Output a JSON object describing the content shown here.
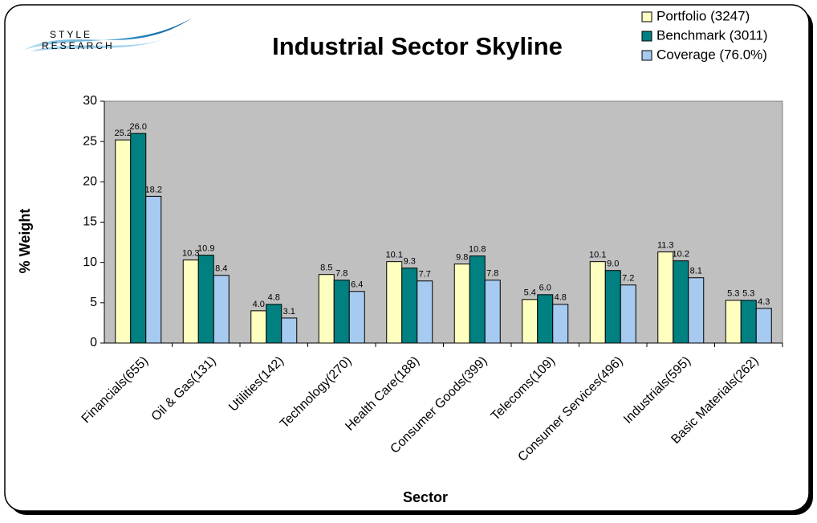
{
  "chart_data": {
    "type": "bar",
    "title": "Industrial Sector Skyline",
    "logo_text": [
      "STYLE",
      "RESEARCH"
    ],
    "x_label": "Sector",
    "y_label": "% Weight",
    "categories": [
      "Financials(655)",
      "Oil & Gas(131)",
      "Utilities(142)",
      "Technology(270)",
      "Health Care(188)",
      "Consumer Goods(399)",
      "Telecoms(109)",
      "Consumer Services(496)",
      "Industrials(595)",
      "Basic Materials(262)"
    ],
    "series": [
      {
        "name": "Portfolio (3247)",
        "color": "#ffffc0",
        "values": [
          25.2,
          10.3,
          4.0,
          8.5,
          10.1,
          9.8,
          5.4,
          10.1,
          11.3,
          5.3
        ],
        "value_labels": [
          "25.2",
          "10.3",
          "4.0",
          "8.5",
          "10.1",
          "9.8",
          "5.4",
          "10.1",
          "11.3",
          "5.3"
        ]
      },
      {
        "name": "Benchmark (3011)",
        "color": "#008080",
        "values": [
          26.0,
          10.9,
          4.8,
          7.8,
          9.3,
          10.8,
          6.0,
          9.0,
          10.2,
          5.3
        ],
        "value_labels": [
          "26.0",
          "10.9",
          "4.8",
          "7.8",
          "9.3",
          "10.8",
          "6.0",
          "9.0",
          "10.2",
          "5.3"
        ]
      },
      {
        "name": "Coverage (76.0%)",
        "color": "#a6caf0",
        "values": [
          18.2,
          8.4,
          3.1,
          6.4,
          7.7,
          7.8,
          4.8,
          7.2,
          8.1,
          4.3
        ],
        "value_labels": [
          "18.2",
          "8.4",
          "3.1",
          "6.4",
          "7.7",
          "7.8",
          "4.8",
          "7.2",
          "8.1",
          "4.3"
        ]
      }
    ],
    "ylim": [
      0,
      30
    ],
    "yticks": [
      0,
      5,
      10,
      15,
      20,
      25,
      30
    ],
    "plot_background": "#c0c0c0",
    "legend": "top-right"
  }
}
